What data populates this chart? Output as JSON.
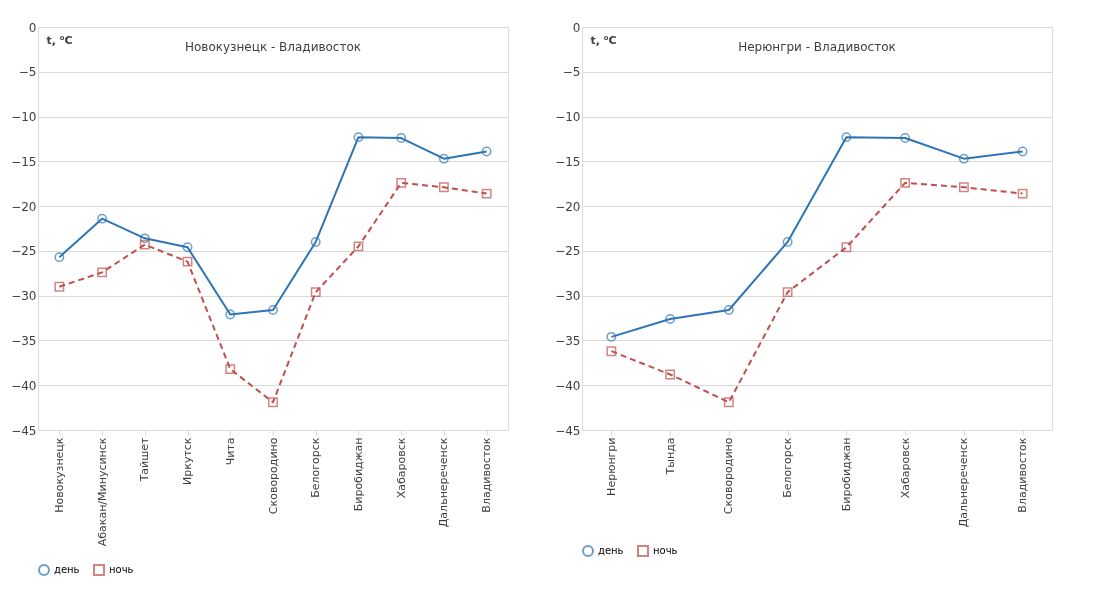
{
  "chart_data": [
    {
      "type": "line",
      "title": "Новокузнецк - Владивосток",
      "ylabel": "t, ⁰C",
      "categories": [
        "Новокузнецк",
        "Абакан/Минусинск",
        "Тайшет",
        "Иркутск",
        "Чита",
        "Сковородино",
        "Белогорск",
        "Биробиджан",
        "Хабаровск",
        "Дальнереченск",
        "Владивосток"
      ],
      "series": [
        {
          "name": "день",
          "color": "#2e75b6",
          "marker": "circle",
          "line_style": "solid",
          "values": [
            -25.7,
            -21.4,
            -23.6,
            -24.6,
            -32.1,
            -31.6,
            -24.0,
            -12.3,
            -12.4,
            -14.7,
            -13.9
          ]
        },
        {
          "name": "ночь",
          "color": "#c0504d",
          "marker": "square",
          "line_style": "dashed",
          "values": [
            -29.0,
            -27.4,
            -24.3,
            -26.2,
            -38.2,
            -41.9,
            -29.6,
            -24.5,
            -17.4,
            -17.9,
            -18.6
          ]
        }
      ],
      "ylim": [
        -45,
        0
      ],
      "yticks": [
        0,
        -5,
        -10,
        -15,
        -20,
        -25,
        -30,
        -35,
        -40,
        -45
      ],
      "grid": "y",
      "legend": "bottom"
    },
    {
      "type": "line",
      "title": "Нерюнгри - Владивосток",
      "ylabel": "t, ⁰C",
      "categories": [
        "Нерюнгри",
        "Тында",
        "Сковородино",
        "Белогорск",
        "Биробиджан",
        "Хабаровск",
        "Дальнереченск",
        "Владивосток"
      ],
      "series": [
        {
          "name": "день",
          "color": "#2e75b6",
          "marker": "circle",
          "line_style": "solid",
          "values": [
            -34.6,
            -32.6,
            -31.6,
            -24.0,
            -12.3,
            -12.4,
            -14.7,
            -13.9
          ]
        },
        {
          "name": "ночь",
          "color": "#c0504d",
          "marker": "square",
          "line_style": "dashed",
          "values": [
            -36.2,
            -38.8,
            -41.9,
            -29.6,
            -24.6,
            -17.4,
            -17.9,
            -18.6
          ]
        }
      ],
      "ylim": [
        -45,
        0
      ],
      "yticks": [
        0,
        -5,
        -10,
        -15,
        -20,
        -25,
        -30,
        -35,
        -40,
        -45
      ],
      "grid": "y",
      "legend": "bottom"
    }
  ]
}
